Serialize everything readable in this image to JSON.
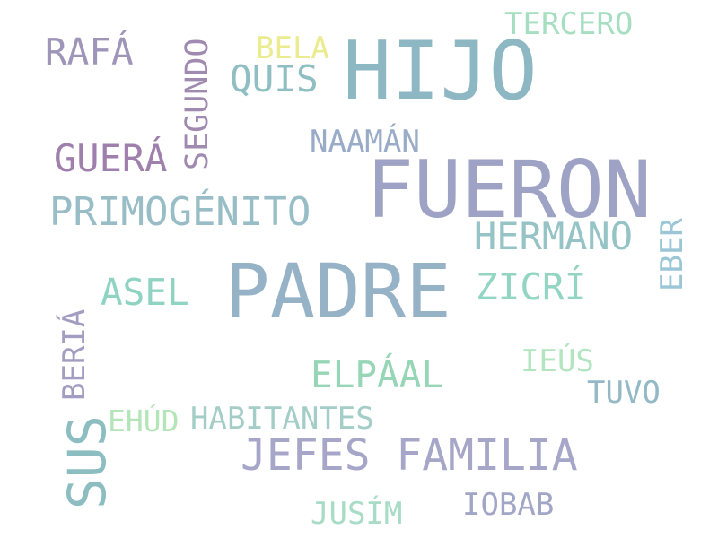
{
  "words": {
    "hijo": "HIJO",
    "fueron": "FUERON",
    "padre": "PADRE",
    "jefes_familia": "JEFES FAMILIA",
    "primogenito": "PRIMOGÉNITO",
    "hermano": "HERMANO",
    "guera": "GUERÁ",
    "rafa": "RAFÁ",
    "quis": "QUIS",
    "zicri": "ZICRÍ",
    "asel": "ASEL",
    "elpaal": "ELPÁAL",
    "tercero": "TERCERO",
    "bela": "BELA",
    "naaman": "NAAMÁN",
    "habitantes": "HABITANTES",
    "iobab": "IOBAB",
    "jusim": "JUSÍM",
    "tuvo": "TUVO",
    "ehud": "EHÚD",
    "ieus": "IEÚS",
    "segundo": "SEGUNDO",
    "beria": "BERIÁ",
    "eber": "EBER",
    "sus": "SUS"
  },
  "colors": {
    "background": "#ffffff",
    "palette": [
      "#8cb7c3",
      "#9ea2c4",
      "#9f80ad",
      "#93d5c3",
      "#ebeb90",
      "#b3e5b9"
    ]
  }
}
